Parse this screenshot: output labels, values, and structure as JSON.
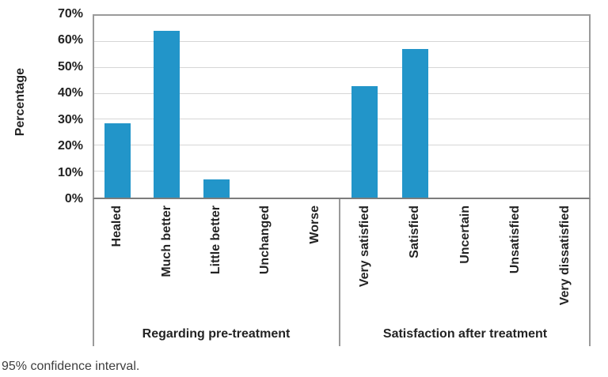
{
  "chart_data": {
    "type": "bar",
    "title": "",
    "ylabel": "Percentage",
    "ylim": [
      0,
      70
    ],
    "ytick_step": 10,
    "ytick_labels": [
      "0%",
      "10%",
      "20%",
      "30%",
      "40%",
      "50%",
      "60%",
      "70%"
    ],
    "grid": true,
    "legend": false,
    "bar_color": "#2295c9",
    "groups": [
      {
        "label": "Regarding pre-treatment",
        "categories": [
          "Healed",
          "Much better",
          "Little better",
          "Unchanged",
          "Worse"
        ],
        "values": [
          28.6,
          64.3,
          7.1,
          0,
          0
        ]
      },
      {
        "label": "Satisfaction after treatment",
        "categories": [
          "Very satisfied",
          "Satisfied",
          "Uncertain",
          "Unsatisfied",
          "Very dissatisfied"
        ],
        "values": [
          42.9,
          57.1,
          0,
          0,
          0
        ]
      }
    ]
  },
  "footnote": "95% confidence interval."
}
